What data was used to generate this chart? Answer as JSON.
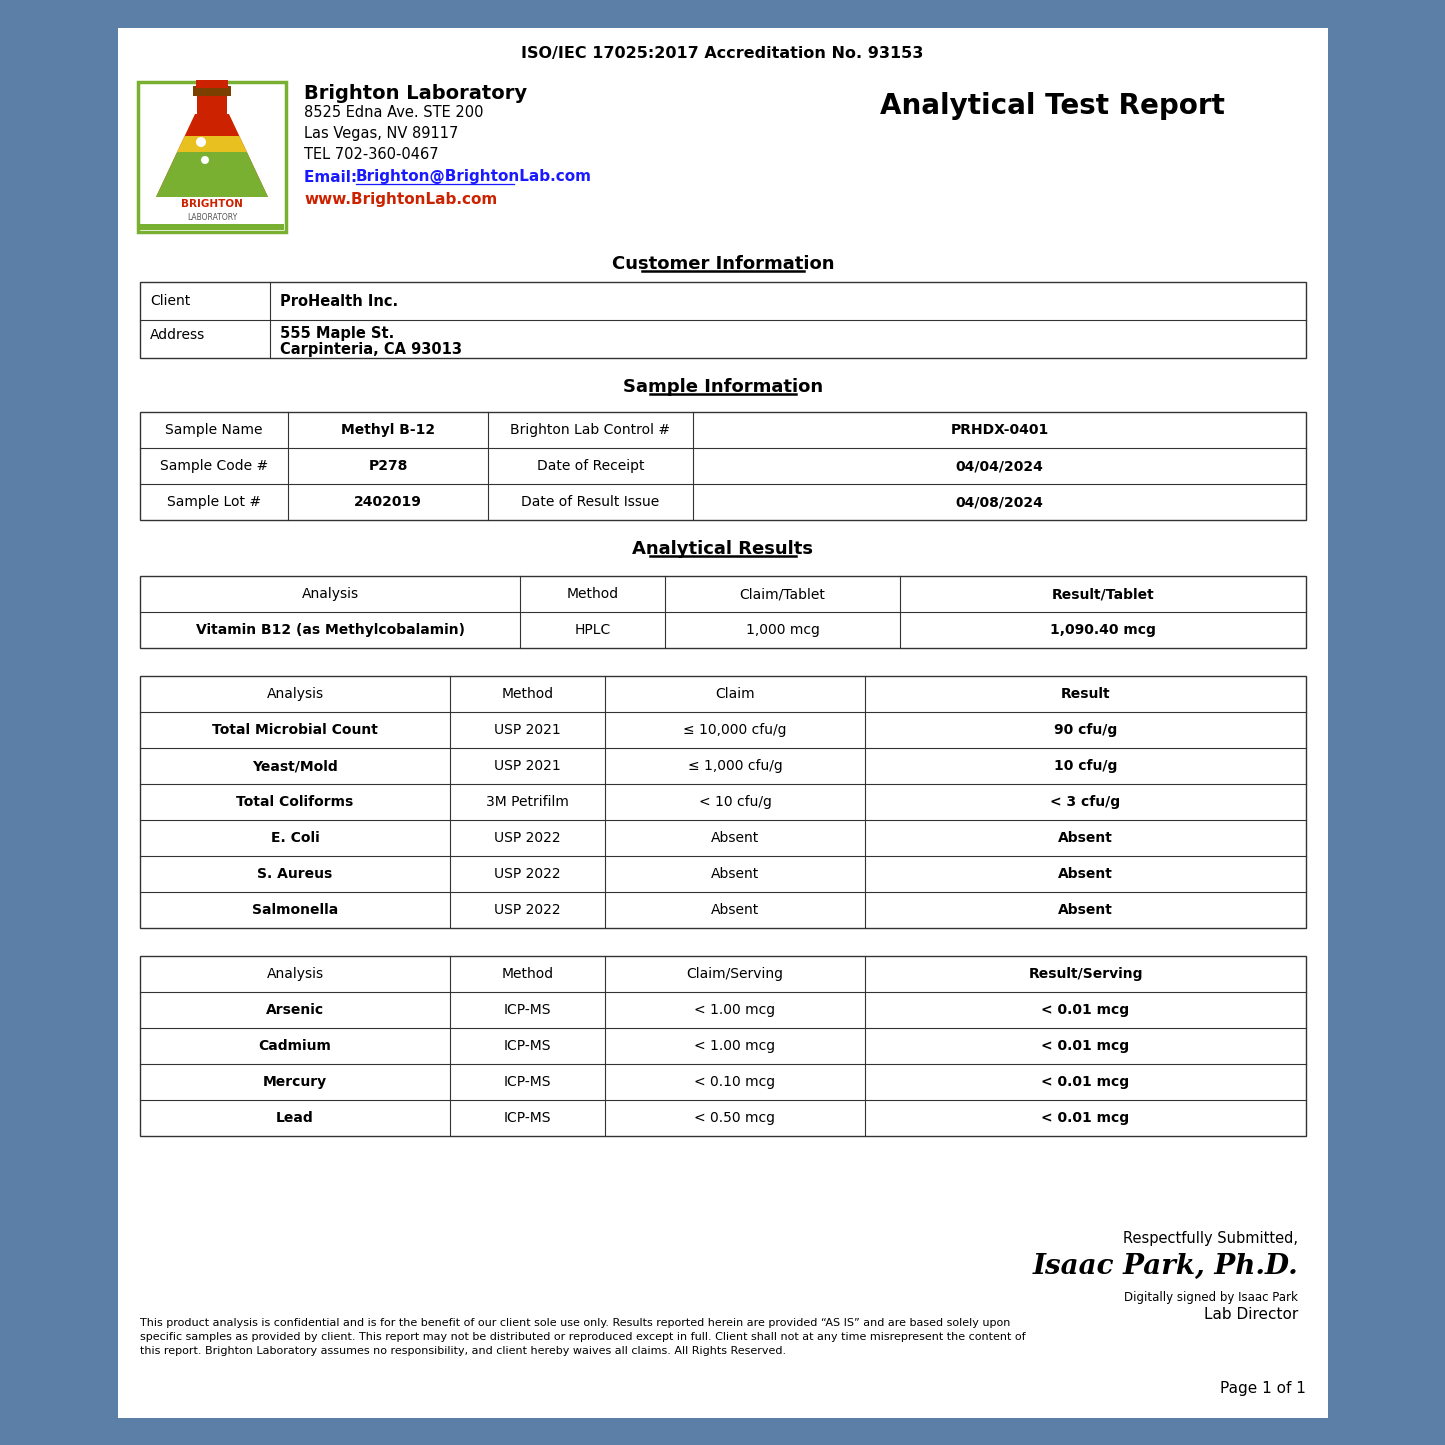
{
  "bg_color": "#5b7fa6",
  "paper_color": "#ffffff",
  "accreditation": "ISO/IEC 17025:2017 Accreditation No. 93153",
  "lab_name": "Brighton Laboratory",
  "lab_address1": "8525 Edna Ave. STE 200",
  "lab_address2": "Las Vegas, NV 89117",
  "lab_tel": "TEL 702-360-0467",
  "lab_email_prefix": "Email: ",
  "lab_email": "Brighton@BrightonLab.com",
  "lab_website": "www.BrightonLab.com",
  "report_title": "Analytical Test Report",
  "customer_section_title": "Customer Information",
  "sample_section_title": "Sample Information",
  "analytical_section_title": "Analytical Results",
  "table1_headers": [
    "Analysis",
    "Method",
    "Claim/Tablet",
    "Result/Tablet"
  ],
  "table1_rows": [
    [
      "Vitamin B12 (as Methylcobalamin)",
      "HPLC",
      "1,000 mcg",
      "1,090.40 mcg"
    ]
  ],
  "table2_headers": [
    "Analysis",
    "Method",
    "Claim",
    "Result"
  ],
  "table2_rows": [
    [
      "Total Microbial Count",
      "USP 2021",
      "≤ 10,000 cfu/g",
      "90 cfu/g"
    ],
    [
      "Yeast/Mold",
      "USP 2021",
      "≤ 1,000 cfu/g",
      "10 cfu/g"
    ],
    [
      "Total Coliforms",
      "3M Petrifilm",
      "< 10 cfu/g",
      "< 3 cfu/g"
    ],
    [
      "E. Coli",
      "USP 2022",
      "Absent",
      "Absent"
    ],
    [
      "S. Aureus",
      "USP 2022",
      "Absent",
      "Absent"
    ],
    [
      "Salmonella",
      "USP 2022",
      "Absent",
      "Absent"
    ]
  ],
  "table3_headers": [
    "Analysis",
    "Method",
    "Claim/Serving",
    "Result/Serving"
  ],
  "table3_rows": [
    [
      "Arsenic",
      "ICP-MS",
      "< 1.00 mcg",
      "< 0.01 mcg"
    ],
    [
      "Cadmium",
      "ICP-MS",
      "< 1.00 mcg",
      "< 0.01 mcg"
    ],
    [
      "Mercury",
      "ICP-MS",
      "< 0.10 mcg",
      "< 0.01 mcg"
    ],
    [
      "Lead",
      "ICP-MS",
      "< 0.50 mcg",
      "< 0.01 mcg"
    ]
  ],
  "footer_submitted": "Respectfully Submitted,",
  "footer_name": "Isaac Park, Ph.D.",
  "footer_digital": "Digitally signed by Isaac Park",
  "footer_title": "Lab Director",
  "disclaimer": "This product analysis is confidential and is for the benefit of our client sole use only. Results reported herein are provided “AS IS” and are based solely upon\nspecific samples as provided by client. This report may not be distributed or reproduced except in full. Client shall not at any time misrepresent the content of\nthis report. Brighton Laboratory assumes no responsibility, and client hereby waives all claims. All Rights Reserved.",
  "page_label": "Page 1 of 1"
}
